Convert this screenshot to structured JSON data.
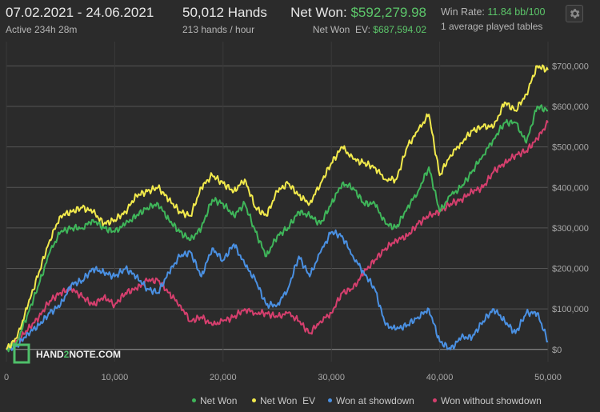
{
  "header": {
    "date_range": "07.02.2021 - 24.06.2021",
    "active": "Active 234h 28m",
    "hands": "50,012 Hands",
    "hands_rate": "213 hands / hour",
    "net_won_label": "Net Won:",
    "net_won_value": "$592,279.98",
    "net_won_ev_label": "Net Won  EV:",
    "net_won_ev_value": "$687,594.02",
    "win_rate_label": "Win Rate:",
    "win_rate_value": "11.84 bb/100",
    "tables": "1 average played tables",
    "settings_icon": "gear-icon"
  },
  "watermark": {
    "prefix": "HAND",
    "mid": "2",
    "suffix": "NOTE.COM"
  },
  "colors": {
    "background": "#2b2b2b",
    "net_won": "#3fb65a",
    "net_won_ev": "#f2ea4c",
    "won_at_showdown": "#4a90e2",
    "won_without_showdown": "#d63f6e",
    "value_green": "#5cc66a"
  },
  "chart_data": {
    "type": "line",
    "xlim": [
      0,
      50000
    ],
    "ylim": [
      -30000,
      760000
    ],
    "x_ticks": [
      "0",
      "10,000",
      "20,000",
      "30,000",
      "40,000",
      "50,000"
    ],
    "y_ticks": [
      "$0",
      "$100,000",
      "$200,000",
      "$300,000",
      "$400,000",
      "$500,000",
      "$600,000",
      "$700,000"
    ],
    "legend_position": "bottom-right",
    "grid": true,
    "series": [
      {
        "name": "Net Won",
        "color": "#3fb65a",
        "points": [
          [
            0,
            0
          ],
          [
            1000,
            20000
          ],
          [
            2000,
            90000
          ],
          [
            3000,
            160000
          ],
          [
            4000,
            240000
          ],
          [
            5000,
            290000
          ],
          [
            6000,
            300000
          ],
          [
            7000,
            300000
          ],
          [
            8000,
            320000
          ],
          [
            9000,
            300000
          ],
          [
            10000,
            290000
          ],
          [
            11000,
            310000
          ],
          [
            12000,
            330000
          ],
          [
            13000,
            350000
          ],
          [
            14000,
            360000
          ],
          [
            15000,
            320000
          ],
          [
            16000,
            290000
          ],
          [
            17000,
            270000
          ],
          [
            18000,
            300000
          ],
          [
            19000,
            370000
          ],
          [
            20000,
            360000
          ],
          [
            21000,
            330000
          ],
          [
            22000,
            360000
          ],
          [
            23000,
            290000
          ],
          [
            24000,
            230000
          ],
          [
            25000,
            280000
          ],
          [
            26000,
            300000
          ],
          [
            27000,
            340000
          ],
          [
            28000,
            330000
          ],
          [
            29000,
            310000
          ],
          [
            30000,
            360000
          ],
          [
            31000,
            410000
          ],
          [
            32000,
            400000
          ],
          [
            33000,
            360000
          ],
          [
            34000,
            360000
          ],
          [
            35000,
            310000
          ],
          [
            36000,
            300000
          ],
          [
            37000,
            350000
          ],
          [
            38000,
            390000
          ],
          [
            39000,
            450000
          ],
          [
            40000,
            340000
          ],
          [
            41000,
            380000
          ],
          [
            42000,
            400000
          ],
          [
            43000,
            440000
          ],
          [
            44000,
            480000
          ],
          [
            45000,
            520000
          ],
          [
            46000,
            560000
          ],
          [
            47000,
            560000
          ],
          [
            48000,
            510000
          ],
          [
            49000,
            600000
          ],
          [
            50000,
            590000
          ]
        ]
      },
      {
        "name": "Net Won  EV",
        "color": "#f2ea4c",
        "points": [
          [
            0,
            0
          ],
          [
            1000,
            30000
          ],
          [
            2000,
            110000
          ],
          [
            3000,
            190000
          ],
          [
            4000,
            270000
          ],
          [
            5000,
            330000
          ],
          [
            6000,
            340000
          ],
          [
            7000,
            350000
          ],
          [
            8000,
            340000
          ],
          [
            9000,
            310000
          ],
          [
            10000,
            320000
          ],
          [
            11000,
            340000
          ],
          [
            12000,
            380000
          ],
          [
            13000,
            390000
          ],
          [
            14000,
            400000
          ],
          [
            15000,
            370000
          ],
          [
            16000,
            340000
          ],
          [
            17000,
            330000
          ],
          [
            18000,
            400000
          ],
          [
            19000,
            430000
          ],
          [
            20000,
            410000
          ],
          [
            21000,
            390000
          ],
          [
            22000,
            420000
          ],
          [
            23000,
            350000
          ],
          [
            24000,
            330000
          ],
          [
            25000,
            390000
          ],
          [
            26000,
            410000
          ],
          [
            27000,
            380000
          ],
          [
            28000,
            360000
          ],
          [
            29000,
            410000
          ],
          [
            30000,
            460000
          ],
          [
            31000,
            500000
          ],
          [
            32000,
            470000
          ],
          [
            33000,
            460000
          ],
          [
            34000,
            450000
          ],
          [
            35000,
            420000
          ],
          [
            36000,
            420000
          ],
          [
            37000,
            500000
          ],
          [
            38000,
            540000
          ],
          [
            39000,
            580000
          ],
          [
            40000,
            430000
          ],
          [
            41000,
            480000
          ],
          [
            42000,
            510000
          ],
          [
            43000,
            540000
          ],
          [
            44000,
            550000
          ],
          [
            45000,
            550000
          ],
          [
            46000,
            610000
          ],
          [
            47000,
            590000
          ],
          [
            48000,
            630000
          ],
          [
            49000,
            700000
          ],
          [
            50000,
            690000
          ]
        ]
      },
      {
        "name": "Won at showdown",
        "color": "#4a90e2",
        "points": [
          [
            0,
            0
          ],
          [
            1000,
            10000
          ],
          [
            2000,
            40000
          ],
          [
            3000,
            60000
          ],
          [
            4000,
            90000
          ],
          [
            5000,
            110000
          ],
          [
            6000,
            160000
          ],
          [
            7000,
            170000
          ],
          [
            8000,
            200000
          ],
          [
            9000,
            190000
          ],
          [
            10000,
            180000
          ],
          [
            11000,
            200000
          ],
          [
            12000,
            180000
          ],
          [
            13000,
            150000
          ],
          [
            14000,
            140000
          ],
          [
            15000,
            190000
          ],
          [
            16000,
            230000
          ],
          [
            17000,
            240000
          ],
          [
            18000,
            180000
          ],
          [
            19000,
            250000
          ],
          [
            20000,
            220000
          ],
          [
            21000,
            260000
          ],
          [
            22000,
            210000
          ],
          [
            23000,
            170000
          ],
          [
            24000,
            110000
          ],
          [
            25000,
            110000
          ],
          [
            26000,
            150000
          ],
          [
            27000,
            230000
          ],
          [
            28000,
            180000
          ],
          [
            29000,
            240000
          ],
          [
            30000,
            290000
          ],
          [
            31000,
            280000
          ],
          [
            32000,
            230000
          ],
          [
            33000,
            190000
          ],
          [
            34000,
            150000
          ],
          [
            35000,
            60000
          ],
          [
            36000,
            50000
          ],
          [
            37000,
            60000
          ],
          [
            38000,
            80000
          ],
          [
            39000,
            100000
          ],
          [
            40000,
            20000
          ],
          [
            41000,
            0
          ],
          [
            42000,
            30000
          ],
          [
            43000,
            30000
          ],
          [
            44000,
            70000
          ],
          [
            45000,
            100000
          ],
          [
            46000,
            70000
          ],
          [
            47000,
            40000
          ],
          [
            48000,
            90000
          ],
          [
            49000,
            90000
          ],
          [
            50000,
            20000
          ]
        ]
      },
      {
        "name": "Won without showdown",
        "color": "#d63f6e",
        "points": [
          [
            0,
            0
          ],
          [
            1000,
            20000
          ],
          [
            2000,
            50000
          ],
          [
            3000,
            80000
          ],
          [
            4000,
            120000
          ],
          [
            5000,
            140000
          ],
          [
            6000,
            150000
          ],
          [
            7000,
            130000
          ],
          [
            8000,
            110000
          ],
          [
            9000,
            130000
          ],
          [
            10000,
            110000
          ],
          [
            11000,
            140000
          ],
          [
            12000,
            150000
          ],
          [
            13000,
            170000
          ],
          [
            14000,
            170000
          ],
          [
            15000,
            140000
          ],
          [
            16000,
            110000
          ],
          [
            17000,
            70000
          ],
          [
            18000,
            80000
          ],
          [
            19000,
            60000
          ],
          [
            20000,
            70000
          ],
          [
            21000,
            80000
          ],
          [
            22000,
            100000
          ],
          [
            23000,
            90000
          ],
          [
            24000,
            90000
          ],
          [
            25000,
            80000
          ],
          [
            26000,
            90000
          ],
          [
            27000,
            70000
          ],
          [
            28000,
            40000
          ],
          [
            29000,
            70000
          ],
          [
            30000,
            90000
          ],
          [
            31000,
            140000
          ],
          [
            32000,
            150000
          ],
          [
            33000,
            190000
          ],
          [
            34000,
            220000
          ],
          [
            35000,
            250000
          ],
          [
            36000,
            270000
          ],
          [
            37000,
            280000
          ],
          [
            38000,
            310000
          ],
          [
            39000,
            330000
          ],
          [
            40000,
            340000
          ],
          [
            41000,
            360000
          ],
          [
            42000,
            370000
          ],
          [
            43000,
            390000
          ],
          [
            44000,
            400000
          ],
          [
            45000,
            440000
          ],
          [
            46000,
            460000
          ],
          [
            47000,
            480000
          ],
          [
            48000,
            490000
          ],
          [
            49000,
            520000
          ],
          [
            50000,
            560000
          ]
        ]
      }
    ]
  }
}
